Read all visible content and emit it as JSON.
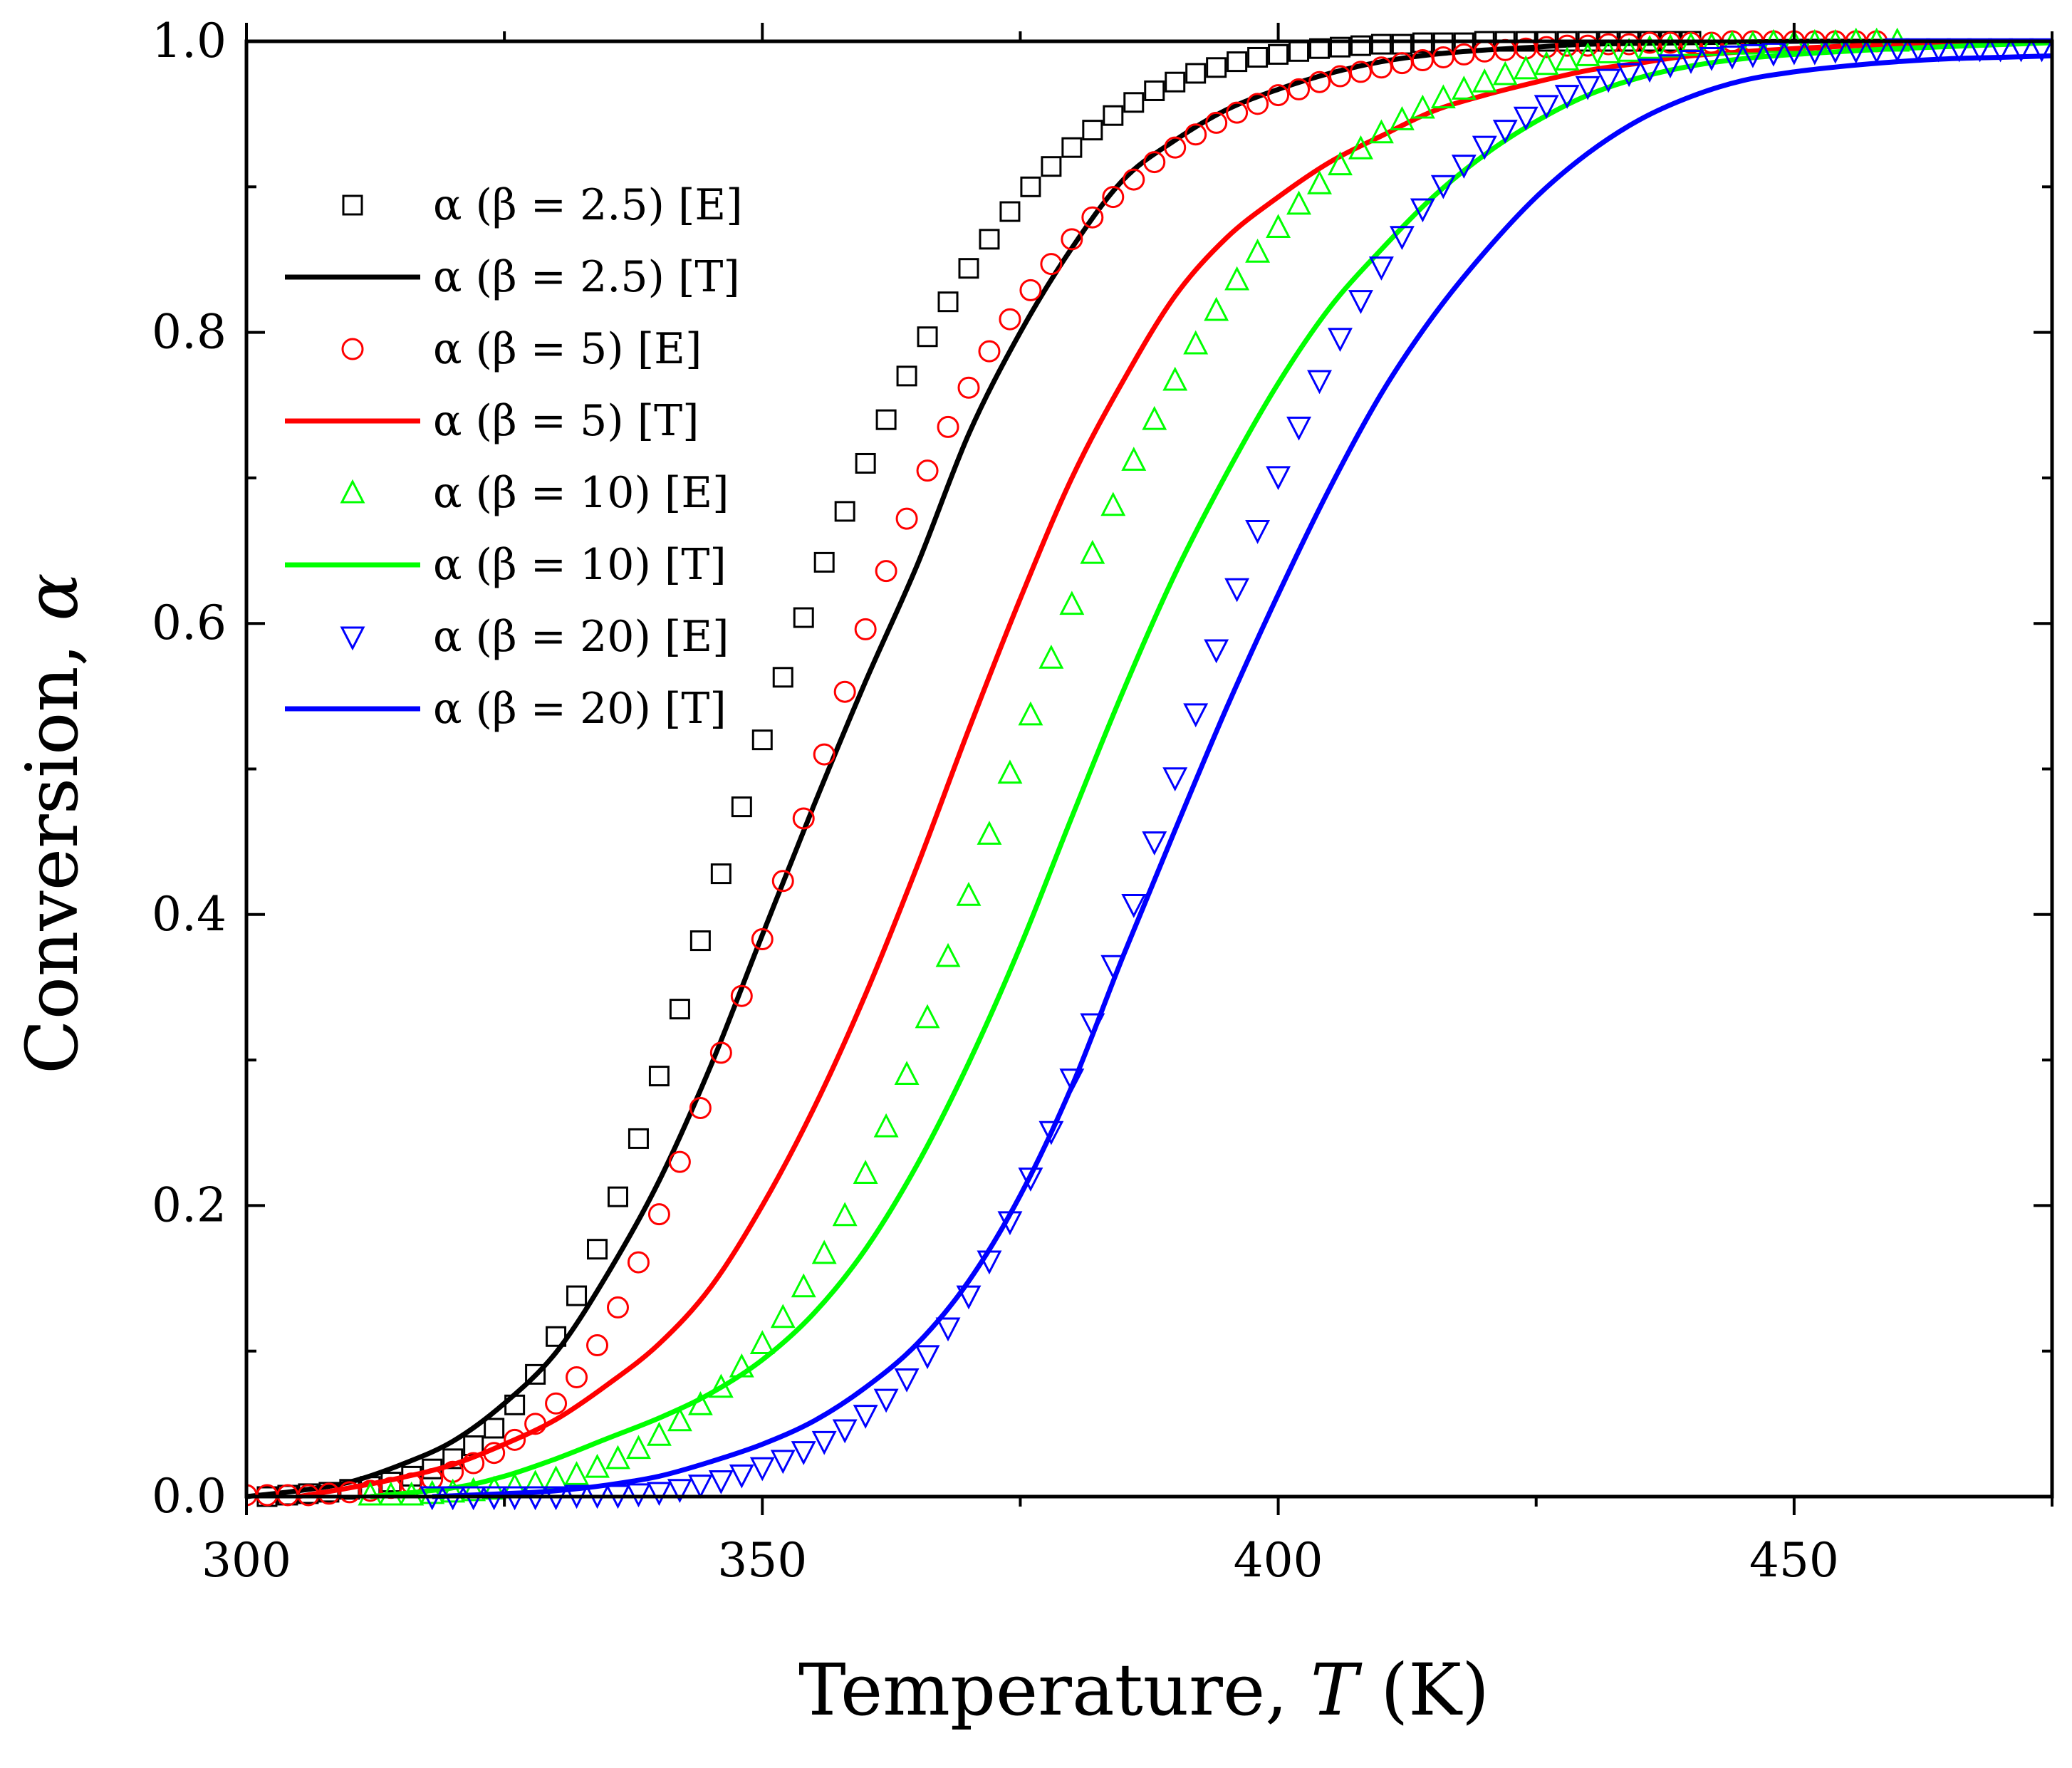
{
  "chart_data": {
    "type": "line",
    "title": "",
    "xlabel": {
      "prefix": "Temperature, ",
      "var": "T",
      "suffix": " (K)"
    },
    "ylabel": {
      "prefix": "Conversion, ",
      "var": "α"
    },
    "xlim": [
      300,
      475
    ],
    "ylim": [
      0,
      1
    ],
    "xticks": [
      300,
      350,
      400,
      450
    ],
    "xtick_labels": [
      "300",
      "350",
      "400",
      "450"
    ],
    "yticks": [
      0,
      0.2,
      0.4,
      0.6,
      0.8,
      1.0
    ],
    "ytick_labels": [
      "0.0",
      "0.2",
      "0.4",
      "0.6",
      "0.8",
      "1.0"
    ],
    "grid": false,
    "legend_position": "top-left",
    "series": [
      {
        "name": "α (β = 2.5) [E]",
        "kind": "markers",
        "marker": "square",
        "color": "#000000",
        "x": [
          302,
          304,
          306,
          308,
          310,
          312,
          314,
          316,
          318,
          320,
          322,
          324,
          326,
          328,
          330,
          332,
          334,
          336,
          338,
          340,
          342,
          344,
          346,
          348,
          350,
          352,
          354,
          356,
          358,
          360,
          362,
          364,
          366,
          368,
          370,
          372,
          374,
          376,
          378,
          380,
          382,
          384,
          386,
          388,
          390,
          392,
          394,
          396,
          398,
          400,
          402,
          404,
          406,
          408,
          410,
          412,
          414,
          416,
          418,
          420,
          422,
          424,
          426,
          428,
          430,
          432,
          434,
          436,
          438,
          440
        ],
        "y": [
          0.0,
          0.001,
          0.002,
          0.003,
          0.005,
          0.007,
          0.01,
          0.014,
          0.019,
          0.026,
          0.035,
          0.047,
          0.063,
          0.084,
          0.11,
          0.138,
          0.17,
          0.206,
          0.246,
          0.289,
          0.335,
          0.382,
          0.428,
          0.474,
          0.52,
          0.563,
          0.604,
          0.642,
          0.677,
          0.71,
          0.74,
          0.77,
          0.797,
          0.821,
          0.844,
          0.864,
          0.883,
          0.9,
          0.914,
          0.927,
          0.939,
          0.949,
          0.958,
          0.966,
          0.972,
          0.978,
          0.982,
          0.986,
          0.989,
          0.991,
          0.993,
          0.995,
          0.996,
          0.997,
          0.998,
          0.998,
          0.999,
          0.999,
          0.999,
          1.0,
          1.0,
          1.0,
          1.0,
          1.0,
          1.0,
          1.0,
          1.0,
          1.0,
          1.0,
          1.0
        ]
      },
      {
        "name": "α (β = 2.5) [T]",
        "kind": "line",
        "color": "#000000",
        "x": [
          300,
          305,
          310,
          315,
          320,
          325,
          330,
          335,
          340,
          345,
          350,
          355,
          360,
          365,
          370,
          375,
          380,
          385,
          390,
          395,
          400,
          405,
          410,
          415,
          420,
          425,
          430,
          440,
          450,
          460,
          475
        ],
        "y": [
          0.0,
          0.004,
          0.01,
          0.022,
          0.038,
          0.064,
          0.099,
          0.153,
          0.217,
          0.296,
          0.386,
          0.475,
          0.56,
          0.64,
          0.73,
          0.8,
          0.858,
          0.905,
          0.932,
          0.953,
          0.967,
          0.978,
          0.986,
          0.991,
          0.994,
          0.996,
          0.998,
          0.999,
          1.0,
          1.0,
          1.0
        ]
      },
      {
        "name": "α (β = 5) [E]",
        "kind": "markers",
        "marker": "circle",
        "color": "#ff0000",
        "x": [
          300,
          302,
          304,
          306,
          308,
          310,
          312,
          314,
          316,
          318,
          320,
          322,
          324,
          326,
          328,
          330,
          332,
          334,
          336,
          338,
          340,
          342,
          344,
          346,
          348,
          350,
          352,
          354,
          356,
          358,
          360,
          362,
          364,
          366,
          368,
          370,
          372,
          374,
          376,
          378,
          380,
          382,
          384,
          386,
          388,
          390,
          392,
          394,
          396,
          398,
          400,
          402,
          404,
          406,
          408,
          410,
          412,
          414,
          416,
          418,
          420,
          422,
          424,
          426,
          428,
          430,
          432,
          434,
          436,
          438,
          440,
          442,
          444,
          446,
          448,
          450,
          452,
          454,
          456,
          458
        ],
        "y": [
          0.001,
          0.001,
          0.001,
          0.001,
          0.002,
          0.003,
          0.004,
          0.006,
          0.009,
          0.012,
          0.017,
          0.023,
          0.03,
          0.039,
          0.05,
          0.064,
          0.082,
          0.104,
          0.13,
          0.161,
          0.194,
          0.23,
          0.267,
          0.305,
          0.344,
          0.383,
          0.423,
          0.466,
          0.51,
          0.553,
          0.596,
          0.636,
          0.672,
          0.705,
          0.735,
          0.762,
          0.787,
          0.809,
          0.829,
          0.847,
          0.864,
          0.879,
          0.893,
          0.905,
          0.917,
          0.927,
          0.936,
          0.944,
          0.951,
          0.957,
          0.963,
          0.967,
          0.972,
          0.976,
          0.979,
          0.982,
          0.985,
          0.987,
          0.989,
          0.991,
          0.993,
          0.994,
          0.995,
          0.996,
          0.997,
          0.997,
          0.998,
          0.998,
          0.999,
          0.999,
          0.999,
          0.999,
          1.0,
          1.0,
          1.0,
          1.0,
          1.0,
          1.0,
          1.0,
          1.0
        ]
      },
      {
        "name": "α (β = 5) [T]",
        "kind": "line",
        "color": "#ff0000",
        "x": [
          305,
          310,
          315,
          320,
          325,
          330,
          335,
          340,
          345,
          350,
          355,
          360,
          365,
          370,
          375,
          380,
          385,
          390,
          395,
          400,
          405,
          410,
          415,
          420,
          425,
          430,
          435,
          440,
          450,
          460,
          475
        ],
        "y": [
          0.0,
          0.006,
          0.013,
          0.022,
          0.036,
          0.053,
          0.077,
          0.105,
          0.144,
          0.2,
          0.267,
          0.345,
          0.433,
          0.527,
          0.617,
          0.7,
          0.767,
          0.825,
          0.865,
          0.893,
          0.917,
          0.935,
          0.952,
          0.963,
          0.972,
          0.98,
          0.985,
          0.99,
          0.995,
          0.998,
          1.0
        ]
      },
      {
        "name": "α (β = 10) [E]",
        "kind": "markers",
        "marker": "triangle-up",
        "color": "#00ff00",
        "x": [
          312,
          314,
          316,
          318,
          320,
          322,
          324,
          326,
          328,
          330,
          332,
          334,
          336,
          338,
          340,
          342,
          344,
          346,
          348,
          350,
          352,
          354,
          356,
          358,
          360,
          362,
          364,
          366,
          368,
          370,
          372,
          374,
          376,
          378,
          380,
          382,
          384,
          386,
          388,
          390,
          392,
          394,
          396,
          398,
          400,
          402,
          404,
          406,
          408,
          410,
          412,
          414,
          416,
          418,
          420,
          422,
          424,
          426,
          428,
          430,
          432,
          434,
          436,
          438,
          440,
          442,
          444,
          446,
          448,
          450,
          452,
          454,
          456,
          458,
          460
        ],
        "y": [
          0.001,
          0.001,
          0.001,
          0.002,
          0.003,
          0.004,
          0.005,
          0.007,
          0.009,
          0.012,
          0.015,
          0.02,
          0.026,
          0.033,
          0.042,
          0.052,
          0.063,
          0.075,
          0.089,
          0.105,
          0.123,
          0.144,
          0.167,
          0.193,
          0.222,
          0.254,
          0.29,
          0.329,
          0.371,
          0.413,
          0.455,
          0.497,
          0.537,
          0.576,
          0.613,
          0.648,
          0.681,
          0.712,
          0.74,
          0.767,
          0.792,
          0.815,
          0.836,
          0.855,
          0.872,
          0.888,
          0.902,
          0.915,
          0.926,
          0.937,
          0.946,
          0.954,
          0.961,
          0.967,
          0.972,
          0.977,
          0.981,
          0.984,
          0.987,
          0.99,
          0.992,
          0.993,
          0.995,
          0.996,
          0.997,
          0.997,
          0.998,
          0.998,
          0.999,
          0.999,
          0.999,
          0.999,
          1.0,
          1.0,
          1.0
        ]
      },
      {
        "name": "α (β = 10) [T]",
        "kind": "line",
        "color": "#00ff00",
        "x": [
          312,
          320,
          325,
          330,
          335,
          340,
          345,
          350,
          355,
          360,
          365,
          370,
          375,
          380,
          385,
          390,
          395,
          400,
          405,
          410,
          415,
          420,
          425,
          430,
          435,
          440,
          445,
          450,
          460,
          475
        ],
        "y": [
          0.0,
          0.006,
          0.014,
          0.026,
          0.04,
          0.054,
          0.071,
          0.094,
          0.126,
          0.17,
          0.228,
          0.298,
          0.378,
          0.467,
          0.554,
          0.634,
          0.703,
          0.765,
          0.817,
          0.857,
          0.893,
          0.922,
          0.945,
          0.963,
          0.975,
          0.983,
          0.988,
          0.991,
          0.995,
          0.999
        ]
      },
      {
        "name": "α (β = 20) [E]",
        "kind": "markers",
        "marker": "triangle-down",
        "color": "#0000ff",
        "x": [
          318,
          320,
          322,
          324,
          326,
          328,
          330,
          332,
          334,
          336,
          338,
          340,
          342,
          344,
          346,
          348,
          350,
          352,
          354,
          356,
          358,
          360,
          362,
          364,
          366,
          368,
          370,
          372,
          374,
          376,
          378,
          380,
          382,
          384,
          386,
          388,
          390,
          392,
          394,
          396,
          398,
          400,
          402,
          404,
          406,
          408,
          410,
          412,
          414,
          416,
          418,
          420,
          422,
          424,
          426,
          428,
          430,
          432,
          434,
          436,
          438,
          440,
          442,
          444,
          446,
          448,
          450,
          452,
          454,
          456,
          458,
          460,
          462,
          464,
          466,
          468,
          470,
          472,
          474
        ],
        "y": [
          0.0,
          0.0,
          0.0,
          0.0,
          0.0,
          0.0,
          0.0,
          0.001,
          0.001,
          0.001,
          0.002,
          0.003,
          0.005,
          0.008,
          0.011,
          0.015,
          0.02,
          0.025,
          0.031,
          0.038,
          0.046,
          0.056,
          0.067,
          0.081,
          0.097,
          0.116,
          0.138,
          0.162,
          0.189,
          0.219,
          0.251,
          0.287,
          0.325,
          0.365,
          0.407,
          0.45,
          0.494,
          0.538,
          0.582,
          0.624,
          0.664,
          0.701,
          0.735,
          0.767,
          0.796,
          0.822,
          0.845,
          0.866,
          0.885,
          0.901,
          0.915,
          0.928,
          0.939,
          0.948,
          0.956,
          0.963,
          0.969,
          0.974,
          0.978,
          0.981,
          0.984,
          0.987,
          0.989,
          0.99,
          0.991,
          0.992,
          0.993,
          0.993,
          0.994,
          0.994,
          0.994,
          0.995,
          0.995,
          0.995,
          0.995,
          0.995,
          0.995,
          0.995,
          0.995
        ]
      },
      {
        "name": "α (β = 20) [T]",
        "kind": "line",
        "color": "#0000ff",
        "x": [
          318,
          325,
          330,
          335,
          340,
          345,
          350,
          355,
          360,
          365,
          370,
          375,
          380,
          385,
          390,
          395,
          400,
          405,
          410,
          415,
          420,
          425,
          430,
          435,
          440,
          445,
          450,
          455,
          460,
          465,
          470,
          475
        ],
        "y": [
          0.0,
          0.002,
          0.004,
          0.008,
          0.014,
          0.024,
          0.036,
          0.052,
          0.075,
          0.105,
          0.148,
          0.207,
          0.282,
          0.372,
          0.458,
          0.542,
          0.62,
          0.693,
          0.758,
          0.811,
          0.855,
          0.893,
          0.923,
          0.946,
          0.962,
          0.973,
          0.979,
          0.983,
          0.986,
          0.988,
          0.989,
          0.99
        ]
      }
    ]
  }
}
